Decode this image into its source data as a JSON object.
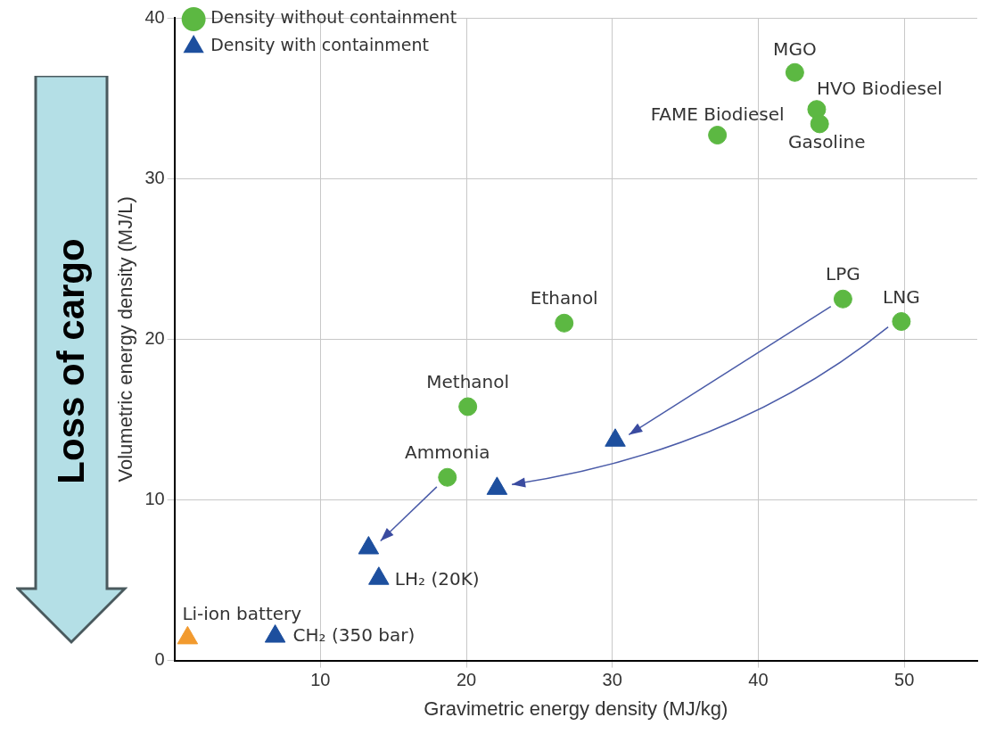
{
  "chart_data": {
    "type": "scatter",
    "xlabel": "Gravimetric energy density (MJ/kg)",
    "ylabel": "Volumetric energy density (MJ/L)",
    "xlim": [
      0,
      55
    ],
    "xticks": [
      10,
      20,
      30,
      40,
      50
    ],
    "ylim": [
      0,
      40
    ],
    "yticks": [
      0,
      10,
      20,
      30,
      40
    ],
    "grid": true,
    "legend": "top left",
    "series": [
      {
        "name": "Density without containment",
        "marker": "circle",
        "x": [
          42.5,
          44.0,
          44.2,
          37.2,
          45.8,
          49.8,
          26.7,
          20.1,
          18.7
        ],
        "values": [
          36.6,
          34.3,
          33.4,
          32.7,
          22.5,
          21.1,
          21.0,
          15.8,
          11.4
        ],
        "colors": [
          "#5cb842",
          "#5cb842",
          "#5cb842",
          "#5cb842",
          "#5cb842",
          "#5cb842",
          "#5cb842",
          "#5cb842",
          "#5cb842"
        ]
      },
      {
        "name": "Density with containment",
        "marker": "triangle",
        "x": [
          30.2,
          22.1,
          13.3,
          14.0,
          6.9,
          0.9
        ],
        "values": [
          13.7,
          10.7,
          7.0,
          5.1,
          1.5,
          1.4
        ],
        "colors": [
          "#1d4f9e",
          "#1d4f9e",
          "#1d4f9e",
          "#1d4f9e",
          "#1d4f9e",
          "#f29a2e"
        ]
      }
    ],
    "annotations": [
      {
        "text": "MGO",
        "x": 42.5,
        "y": 36.6
      },
      {
        "text": "HVO Biodiesel",
        "x": 44.0,
        "y": 34.3
      },
      {
        "text": "Gasoline",
        "x": 44.2,
        "y": 33.4
      },
      {
        "text": "FAME Biodiesel",
        "x": 37.2,
        "y": 32.7
      },
      {
        "text": "LPG",
        "x": 45.8,
        "y": 22.5
      },
      {
        "text": "LNG",
        "x": 49.8,
        "y": 21.1
      },
      {
        "text": "Ethanol",
        "x": 26.7,
        "y": 21.0
      },
      {
        "text": "Methanol",
        "x": 20.1,
        "y": 15.8
      },
      {
        "text": "Ammonia",
        "x": 18.7,
        "y": 11.4
      },
      {
        "text": "LH₂ (20K)",
        "x": 14.0,
        "y": 5.1
      },
      {
        "text": "CH₂ (350 bar)",
        "x": 6.9,
        "y": 1.5
      },
      {
        "text": "Li-ion battery",
        "x": 0.9,
        "y": 1.4
      },
      "Loss of cargo"
    ]
  }
}
